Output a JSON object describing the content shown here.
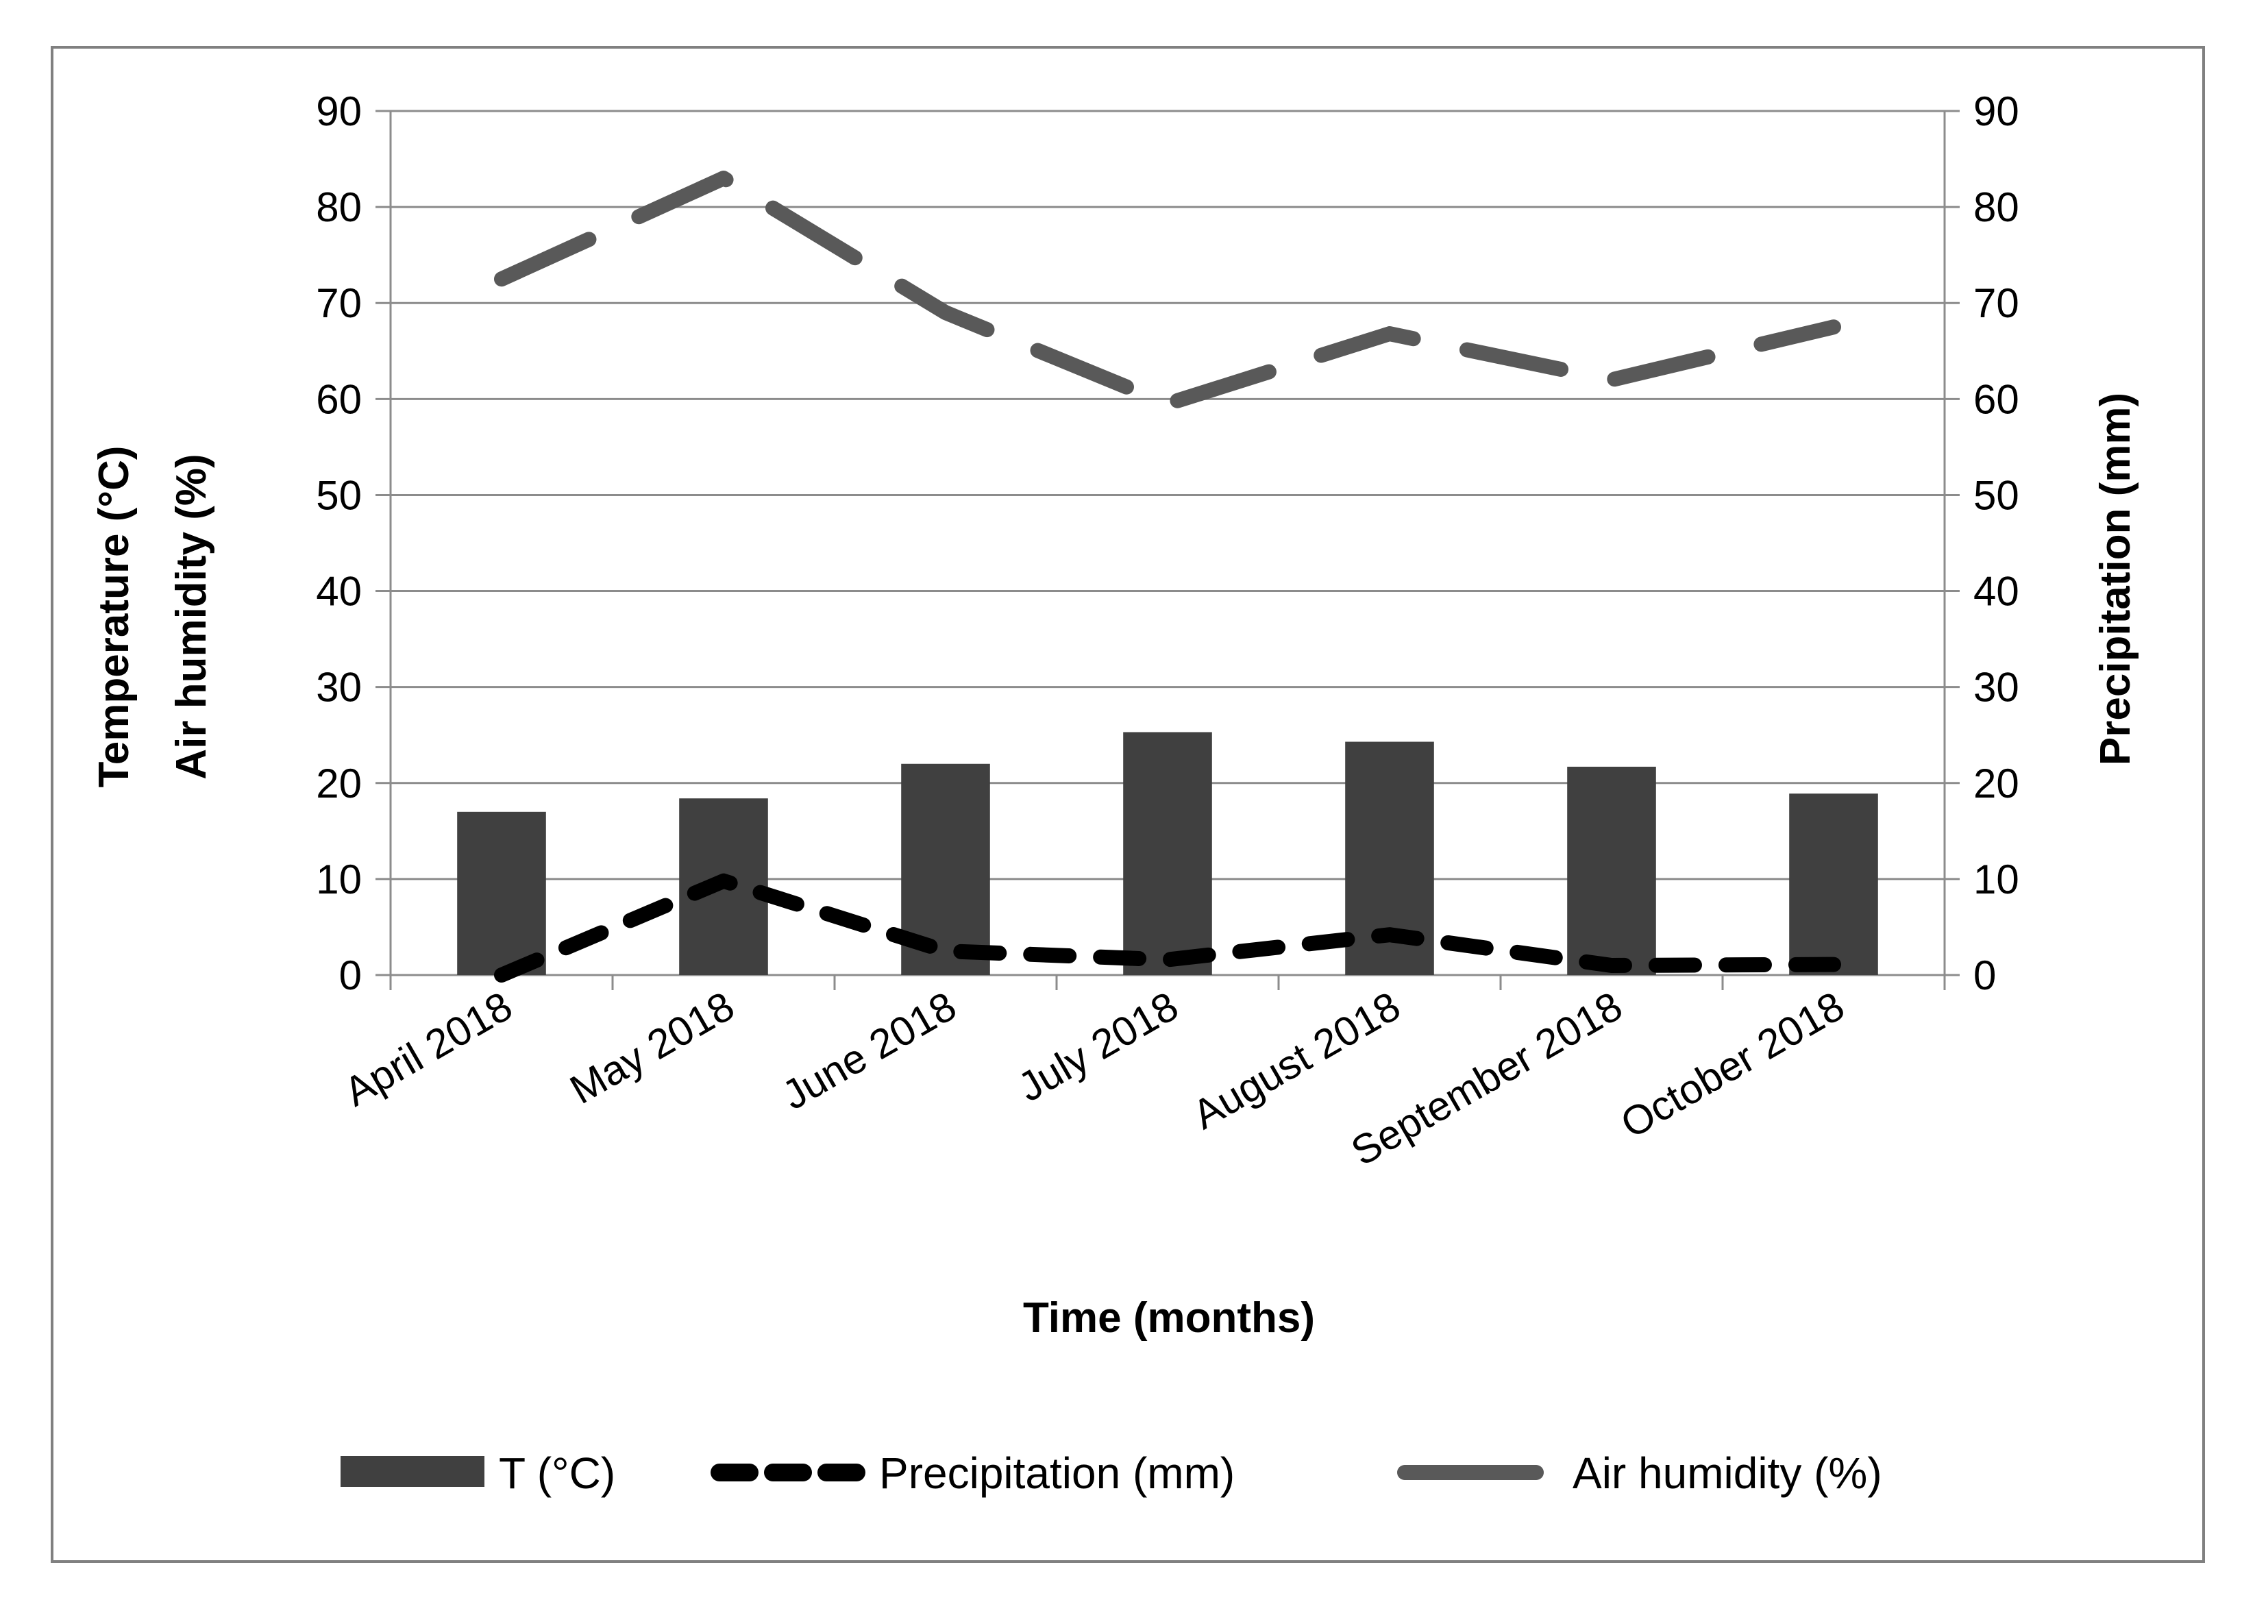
{
  "chart_data": {
    "type": "bar",
    "categories": [
      "April 2018",
      "May 2018",
      "June 2018",
      "July 2018",
      "August 2018",
      "September 2018",
      "October 2018"
    ],
    "series": [
      {
        "name": "T (°C)",
        "kind": "bar",
        "axis": "left",
        "color": "#404040",
        "values": [
          17.0,
          18.4,
          22.0,
          25.3,
          24.3,
          21.7,
          18.9
        ]
      },
      {
        "name": "Precipitation (mm)",
        "kind": "line",
        "style": "dashed",
        "axis": "right",
        "color": "#000000",
        "values": [
          0.0,
          9.8,
          2.5,
          1.6,
          4.2,
          1.0,
          1.1
        ]
      },
      {
        "name": "Air humidity (%)",
        "kind": "line",
        "style": "dashed",
        "axis": "left",
        "color": "#595959",
        "values": [
          72.5,
          83.0,
          69.0,
          59.5,
          66.8,
          62.0,
          67.5
        ]
      }
    ],
    "xlabel": "Time (months)",
    "ylabel_lines": [
      "Temperature (°C)",
      "Air humidity (%)"
    ],
    "y2label": "Precipitation (mm)",
    "ylim": [
      0,
      90
    ],
    "y2lim": [
      0,
      90
    ],
    "yticks": [
      0,
      10,
      20,
      30,
      40,
      50,
      60,
      70,
      80,
      90
    ],
    "grid": true,
    "legend_position": "bottom"
  }
}
